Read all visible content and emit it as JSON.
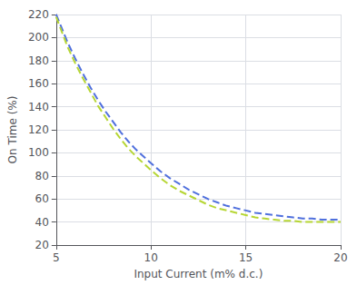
{
  "chart_data": {
    "type": "line",
    "xlabel": "Input Current (m% d.c.)",
    "ylabel": "On Time (%)",
    "x": [
      5.0,
      5.3,
      5.6,
      6.0,
      6.4,
      6.8,
      7.2,
      7.6,
      8.0,
      8.4,
      8.8,
      9.2,
      9.6,
      10.0,
      10.5,
      11.0,
      11.5,
      12.0,
      12.5,
      13.0,
      13.5,
      14.0,
      14.5,
      15.0,
      15.5,
      16.0,
      16.5,
      17.0,
      17.5,
      18.0,
      18.5,
      19.0,
      19.5,
      20.0
    ],
    "series": [
      {
        "values": [
          220,
          208,
          196,
          182,
          169,
          157,
          146,
          136,
          127,
          118,
          110,
          103,
          97,
          91,
          84,
          78,
          73,
          68,
          64,
          60,
          57,
          54,
          52,
          50,
          48,
          47,
          46,
          45,
          44,
          43,
          43,
          42,
          42,
          42
        ]
      },
      {
        "values": [
          218,
          205,
          192,
          178,
          165,
          153,
          141,
          131,
          121,
          112,
          104,
          97,
          91,
          85,
          78,
          72,
          67,
          63,
          59,
          55,
          52,
          50,
          48,
          46,
          44,
          43,
          42,
          41,
          41,
          40,
          40,
          40,
          40,
          40
        ]
      }
    ],
    "xlim": [
      5,
      20
    ],
    "ylim": [
      20,
      220
    ],
    "xticks": [
      5,
      10,
      15,
      20
    ],
    "yticks": [
      20,
      40,
      60,
      80,
      100,
      120,
      140,
      160,
      180,
      200,
      220
    ],
    "grid": true,
    "line_style": "dashed"
  }
}
